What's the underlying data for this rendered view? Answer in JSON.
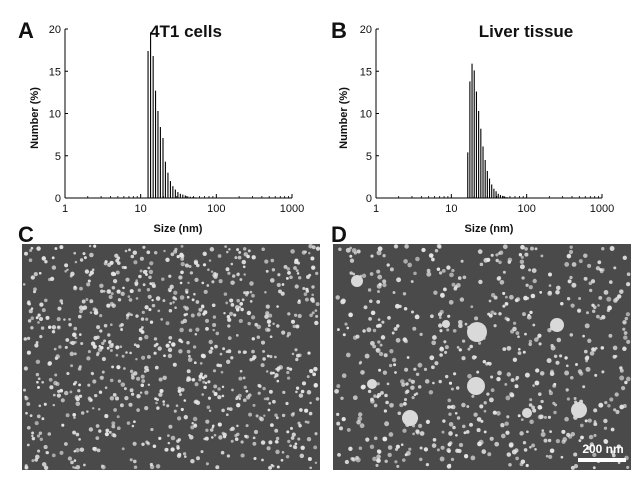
{
  "panels": {
    "A": {
      "letter": "A"
    },
    "B": {
      "letter": "B"
    },
    "C": {
      "letter": "C"
    },
    "D": {
      "letter": "D"
    }
  },
  "micrograph": {
    "scale_bar_label": "200 nm",
    "background_color": "#4a4a4a",
    "particle_color": "#e6e6e6"
  },
  "chart_data": [
    {
      "type": "bar",
      "panel": "A",
      "title": "4T1 cells",
      "xlabel": "Size (nm)",
      "ylabel": "Number (%)",
      "xscale": "log",
      "xlim": [
        1,
        1000
      ],
      "ylim": [
        0,
        20
      ],
      "xticks": [
        "1",
        "10",
        "100",
        "1000"
      ],
      "yticks": [
        "0",
        "5",
        "10",
        "15",
        "20"
      ],
      "x": [
        12.5,
        13.5,
        14.6,
        15.7,
        16.9,
        18.2,
        19.7,
        21.2,
        22.9,
        24.7,
        26.6,
        28.7,
        31.0,
        33.4,
        36.0,
        38.8,
        41.9,
        45.2,
        48.7,
        52.5,
        56.6
      ],
      "values": [
        17.4,
        19.6,
        16.8,
        12.7,
        10.3,
        8.4,
        7.1,
        4.3,
        3.0,
        2.0,
        1.4,
        1.0,
        0.7,
        0.5,
        0.4,
        0.3,
        0.2,
        0.15,
        0.1,
        0.08,
        0.05
      ],
      "bar_color": "#000000"
    },
    {
      "type": "bar",
      "panel": "B",
      "title": "Liver tissue",
      "xlabel": "Size (nm)",
      "ylabel": "Number (%)",
      "xscale": "log",
      "xlim": [
        1,
        1000
      ],
      "ylim": [
        0,
        20
      ],
      "xticks": [
        "1",
        "10",
        "100",
        "1000"
      ],
      "yticks": [
        "0",
        "5",
        "10",
        "15",
        "20"
      ],
      "x": [
        16.5,
        17.6,
        18.8,
        20.1,
        21.5,
        23.0,
        24.6,
        26.3,
        28.1,
        30.0,
        32.1,
        34.3,
        36.7,
        39.2,
        41.9,
        44.8,
        47.9,
        51.2,
        54.7,
        58.5
      ],
      "values": [
        5.4,
        13.8,
        15.9,
        15.1,
        12.6,
        10.3,
        8.2,
        6.1,
        4.5,
        3.2,
        2.3,
        1.6,
        1.1,
        0.8,
        0.5,
        0.35,
        0.25,
        0.15,
        0.1,
        0.05
      ],
      "bar_color": "#000000"
    }
  ]
}
